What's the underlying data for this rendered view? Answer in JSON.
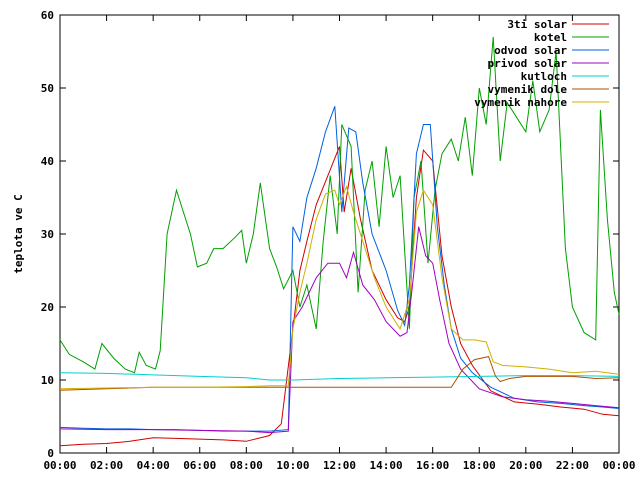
{
  "chart_data": {
    "type": "line",
    "title": "",
    "xlabel": "",
    "ylabel": "teplota ve C",
    "xlim": [
      0,
      24
    ],
    "ylim": [
      0,
      60
    ],
    "grid": false,
    "legend_position": "top-right",
    "x_ticks": [
      "00:00",
      "02:00",
      "04:00",
      "06:00",
      "08:00",
      "10:00",
      "12:00",
      "14:00",
      "16:00",
      "18:00",
      "20:00",
      "22:00",
      "00:00"
    ],
    "y_ticks": [
      "0",
      "10",
      "20",
      "30",
      "40",
      "50",
      "60"
    ],
    "series": [
      {
        "name": "3ti solar",
        "color": "#d00000",
        "points": [
          [
            0,
            1
          ],
          [
            1,
            1.2
          ],
          [
            2,
            1.3
          ],
          [
            3,
            1.6
          ],
          [
            4,
            2.1
          ],
          [
            5,
            2
          ],
          [
            6,
            1.9
          ],
          [
            7,
            1.8
          ],
          [
            8,
            1.6
          ],
          [
            9,
            2.4
          ],
          [
            9.5,
            4
          ],
          [
            10,
            17
          ],
          [
            10.3,
            25
          ],
          [
            10.6,
            29
          ],
          [
            11,
            34
          ],
          [
            11.5,
            38
          ],
          [
            12,
            42
          ],
          [
            12.2,
            33
          ],
          [
            12.5,
            39
          ],
          [
            12.9,
            32
          ],
          [
            13.4,
            25
          ],
          [
            14,
            21
          ],
          [
            14.5,
            18.5
          ],
          [
            14.8,
            18
          ],
          [
            15,
            20
          ],
          [
            15.3,
            35
          ],
          [
            15.6,
            41.5
          ],
          [
            16,
            40
          ],
          [
            16.4,
            27
          ],
          [
            16.8,
            20
          ],
          [
            17.2,
            15
          ],
          [
            17.7,
            12
          ],
          [
            18.5,
            8.5
          ],
          [
            19.5,
            7
          ],
          [
            20.5,
            6.7
          ],
          [
            21.5,
            6.3
          ],
          [
            22.5,
            6
          ],
          [
            23.3,
            5.3
          ],
          [
            24,
            5.1
          ]
        ]
      },
      {
        "name": "kotel",
        "color": "#00a000",
        "points": [
          [
            0,
            15.5
          ],
          [
            0.4,
            13.5
          ],
          [
            1,
            12.5
          ],
          [
            1.5,
            11.5
          ],
          [
            1.8,
            15
          ],
          [
            2.3,
            13
          ],
          [
            2.8,
            11.5
          ],
          [
            3.2,
            11
          ],
          [
            3.4,
            13.8
          ],
          [
            3.7,
            12
          ],
          [
            4.1,
            11.5
          ],
          [
            4.3,
            14
          ],
          [
            4.6,
            30
          ],
          [
            5,
            36
          ],
          [
            5.3,
            33
          ],
          [
            5.6,
            30
          ],
          [
            5.9,
            25.5
          ],
          [
            6.3,
            26
          ],
          [
            6.6,
            28
          ],
          [
            7,
            28
          ],
          [
            7.5,
            29.5
          ],
          [
            7.8,
            30.5
          ],
          [
            8,
            26
          ],
          [
            8.3,
            30
          ],
          [
            8.6,
            37
          ],
          [
            9,
            28
          ],
          [
            9.3,
            25.5
          ],
          [
            9.6,
            22.5
          ],
          [
            10,
            25
          ],
          [
            10.3,
            20
          ],
          [
            10.6,
            23
          ],
          [
            11,
            17
          ],
          [
            11.3,
            29
          ],
          [
            11.6,
            38
          ],
          [
            11.9,
            30
          ],
          [
            12.1,
            45
          ],
          [
            12.5,
            42
          ],
          [
            12.8,
            22
          ],
          [
            13.1,
            36
          ],
          [
            13.4,
            40
          ],
          [
            13.7,
            31
          ],
          [
            14,
            42
          ],
          [
            14.3,
            35
          ],
          [
            14.6,
            38
          ],
          [
            15,
            17
          ],
          [
            15.2,
            35
          ],
          [
            15.5,
            40
          ],
          [
            15.8,
            26
          ],
          [
            16.1,
            36
          ],
          [
            16.4,
            41
          ],
          [
            16.8,
            43
          ],
          [
            17.1,
            40
          ],
          [
            17.4,
            46
          ],
          [
            17.7,
            38
          ],
          [
            18,
            50
          ],
          [
            18.3,
            45
          ],
          [
            18.6,
            57
          ],
          [
            18.9,
            40
          ],
          [
            19.2,
            48
          ],
          [
            19.6,
            46
          ],
          [
            20,
            44
          ],
          [
            20.3,
            51
          ],
          [
            20.6,
            44
          ],
          [
            21,
            47
          ],
          [
            21.3,
            55
          ],
          [
            21.7,
            28
          ],
          [
            22,
            20
          ],
          [
            22.5,
            16.5
          ],
          [
            23,
            15.5
          ],
          [
            23.2,
            47
          ],
          [
            23.5,
            32
          ],
          [
            23.8,
            22
          ],
          [
            24,
            19
          ]
        ]
      },
      {
        "name": "odvod solar",
        "color": "#0060e0",
        "points": [
          [
            0,
            3.5
          ],
          [
            1,
            3.4
          ],
          [
            2,
            3.3
          ],
          [
            3,
            3.3
          ],
          [
            4,
            3.2
          ],
          [
            5,
            3.2
          ],
          [
            6,
            3.1
          ],
          [
            7,
            3
          ],
          [
            8,
            3
          ],
          [
            9,
            3
          ],
          [
            9.8,
            3.2
          ],
          [
            10,
            31
          ],
          [
            10.3,
            29
          ],
          [
            10.6,
            35
          ],
          [
            11,
            39
          ],
          [
            11.4,
            44
          ],
          [
            11.8,
            47.5
          ],
          [
            12.1,
            33
          ],
          [
            12.4,
            44.5
          ],
          [
            12.7,
            44
          ],
          [
            13,
            37
          ],
          [
            13.4,
            30
          ],
          [
            14,
            25
          ],
          [
            14.5,
            19.5
          ],
          [
            14.8,
            17.5
          ],
          [
            15,
            23
          ],
          [
            15.3,
            41
          ],
          [
            15.6,
            45
          ],
          [
            15.9,
            45
          ],
          [
            16.2,
            31
          ],
          [
            16.5,
            23
          ],
          [
            16.8,
            17
          ],
          [
            17.2,
            13
          ],
          [
            17.7,
            11
          ],
          [
            18.5,
            9
          ],
          [
            19.5,
            7.5
          ],
          [
            20.5,
            7
          ],
          [
            21.5,
            6.8
          ],
          [
            22.5,
            6.5
          ],
          [
            23.3,
            6.3
          ],
          [
            24,
            6.1
          ]
        ]
      },
      {
        "name": "privod solar",
        "color": "#a000c0",
        "points": [
          [
            0,
            3.3
          ],
          [
            2,
            3.2
          ],
          [
            4,
            3.2
          ],
          [
            6,
            3.1
          ],
          [
            8,
            3
          ],
          [
            9,
            2.8
          ],
          [
            9.8,
            3
          ],
          [
            10,
            18
          ],
          [
            10.4,
            20
          ],
          [
            11,
            24
          ],
          [
            11.5,
            26
          ],
          [
            12,
            26
          ],
          [
            12.3,
            24
          ],
          [
            12.6,
            27.5
          ],
          [
            13,
            23
          ],
          [
            13.5,
            21
          ],
          [
            14,
            18
          ],
          [
            14.6,
            16
          ],
          [
            14.9,
            16.5
          ],
          [
            15.1,
            22
          ],
          [
            15.4,
            31
          ],
          [
            15.7,
            27
          ],
          [
            16,
            26
          ],
          [
            16.3,
            21
          ],
          [
            16.7,
            15
          ],
          [
            17.2,
            11.5
          ],
          [
            18,
            8.8
          ],
          [
            19,
            7.7
          ],
          [
            20,
            7.3
          ],
          [
            21,
            7.1
          ],
          [
            22,
            6.8
          ],
          [
            23,
            6.5
          ],
          [
            24,
            6.2
          ]
        ]
      },
      {
        "name": "kutloch",
        "color": "#00d0d0",
        "points": [
          [
            0,
            11
          ],
          [
            2,
            10.9
          ],
          [
            4,
            10.7
          ],
          [
            6,
            10.5
          ],
          [
            8,
            10.3
          ],
          [
            9,
            10
          ],
          [
            10,
            10
          ],
          [
            12,
            10.2
          ],
          [
            14,
            10.3
          ],
          [
            16,
            10.4
          ],
          [
            18,
            10.5
          ],
          [
            20,
            10.6
          ],
          [
            22,
            10.6
          ],
          [
            24,
            10.5
          ]
        ]
      },
      {
        "name": "vymenik dole",
        "color": "#b05000",
        "points": [
          [
            0,
            8.6
          ],
          [
            2,
            8.8
          ],
          [
            4,
            9
          ],
          [
            6,
            9
          ],
          [
            8,
            9
          ],
          [
            10,
            9
          ],
          [
            12,
            9
          ],
          [
            14,
            9
          ],
          [
            16,
            9
          ],
          [
            16.8,
            9
          ],
          [
            17,
            10
          ],
          [
            17.3,
            11.5
          ],
          [
            17.8,
            12.8
          ],
          [
            18.4,
            13.2
          ],
          [
            18.7,
            10.5
          ],
          [
            18.9,
            9.8
          ],
          [
            19.3,
            10.2
          ],
          [
            20,
            10.5
          ],
          [
            21,
            10.5
          ],
          [
            22,
            10.5
          ],
          [
            23,
            10.2
          ],
          [
            24,
            10.3
          ]
        ]
      },
      {
        "name": "vymenik nahore",
        "color": "#d0b000",
        "points": [
          [
            0,
            8.8
          ],
          [
            2,
            8.9
          ],
          [
            4,
            9
          ],
          [
            6,
            9
          ],
          [
            8,
            9.1
          ],
          [
            9,
            9.2
          ],
          [
            9.8,
            9.2
          ],
          [
            10,
            17
          ],
          [
            10.3,
            22
          ],
          [
            10.6,
            26
          ],
          [
            11,
            32
          ],
          [
            11.4,
            35.5
          ],
          [
            11.8,
            36
          ],
          [
            12,
            34
          ],
          [
            12.3,
            36.5
          ],
          [
            12.6,
            33
          ],
          [
            13,
            29
          ],
          [
            13.5,
            24
          ],
          [
            14,
            20
          ],
          [
            14.6,
            17
          ],
          [
            15,
            21
          ],
          [
            15.3,
            33
          ],
          [
            15.6,
            36
          ],
          [
            16,
            34
          ],
          [
            16.4,
            24
          ],
          [
            16.8,
            17
          ],
          [
            17.3,
            15.5
          ],
          [
            17.8,
            15.5
          ],
          [
            18.3,
            15.2
          ],
          [
            18.6,
            12.5
          ],
          [
            19,
            12
          ],
          [
            20,
            11.8
          ],
          [
            21,
            11.5
          ],
          [
            22,
            11
          ],
          [
            23,
            11.2
          ],
          [
            24,
            10.8
          ]
        ]
      }
    ]
  }
}
